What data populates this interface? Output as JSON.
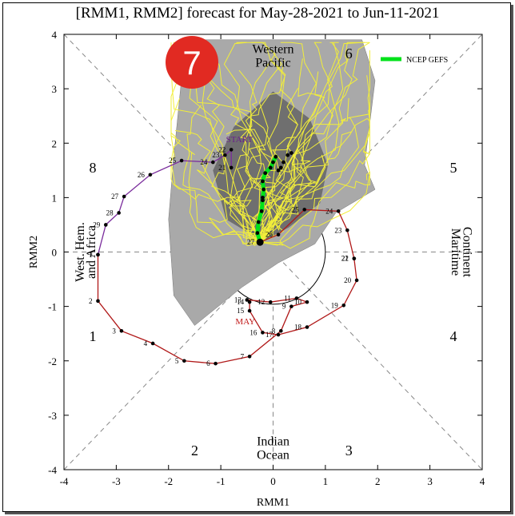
{
  "chart_data": {
    "type": "line",
    "title": "[RMM1, RMM2] forecast for May-28-2021 to Jun-11-2021",
    "xlabel": "RMM1",
    "ylabel": "RMM2",
    "xlim": [
      -4,
      4
    ],
    "ylim": [
      -4,
      4
    ],
    "xticks": [
      "-4",
      "-3",
      "-2",
      "-1",
      "0",
      "1",
      "2",
      "3",
      "4"
    ],
    "yticks": [
      "-4",
      "-3",
      "-2",
      "-1",
      "0",
      "1",
      "2",
      "3",
      "4"
    ],
    "phases": [
      "1",
      "2",
      "3",
      "4",
      "5",
      "6",
      "7",
      "8"
    ],
    "regions": {
      "top": [
        "Western",
        "Pacific"
      ],
      "bottom": [
        "Indian",
        "Ocean"
      ],
      "left": [
        "West. Hem.",
        "and Africa"
      ],
      "right": [
        "Maritime",
        "Continent"
      ]
    },
    "badge": "7",
    "legend": {
      "label": "NCEP GEFS",
      "color": "#00e21a",
      "placement": "top-right"
    },
    "annotations": {
      "start": "START",
      "month": "MAY"
    },
    "observed_red": [
      {
        "d": "1",
        "x": -3.35,
        "y": -0.05
      },
      {
        "d": "2",
        "x": -3.35,
        "y": -0.9
      },
      {
        "d": "3",
        "x": -2.9,
        "y": -1.45
      },
      {
        "d": "4",
        "x": -2.3,
        "y": -1.68
      },
      {
        "d": "5",
        "x": -1.7,
        "y": -2.0
      },
      {
        "d": "6",
        "x": -1.1,
        "y": -2.05
      },
      {
        "d": "7",
        "x": -0.45,
        "y": -1.92
      },
      {
        "d": "8",
        "x": 0.15,
        "y": -1.45
      },
      {
        "d": "9",
        "x": 0.35,
        "y": -1.0
      },
      {
        "d": "10",
        "x": 0.65,
        "y": -0.92
      },
      {
        "d": "11",
        "x": 0.45,
        "y": -0.85
      },
      {
        "d": "12",
        "x": -0.05,
        "y": -0.92
      },
      {
        "d": "13",
        "x": -0.5,
        "y": -0.88
      },
      {
        "d": "14",
        "x": -0.45,
        "y": -0.92
      },
      {
        "d": "15",
        "x": -0.45,
        "y": -1.08
      },
      {
        "d": "16",
        "x": -0.2,
        "y": -1.48
      },
      {
        "d": "17",
        "x": 0.1,
        "y": -1.52
      },
      {
        "d": "18",
        "x": 0.65,
        "y": -1.38
      },
      {
        "d": "19",
        "x": 1.35,
        "y": -0.98
      },
      {
        "d": "20",
        "x": 1.6,
        "y": -0.52
      },
      {
        "d": "21",
        "x": 1.55,
        "y": -0.12
      },
      {
        "d": "22",
        "x": 1.55,
        "y": -0.12
      },
      {
        "d": "23",
        "x": 1.42,
        "y": 0.4
      },
      {
        "d": "24",
        "x": 1.25,
        "y": 0.75
      },
      {
        "d": "25",
        "x": 0.6,
        "y": 0.78
      },
      {
        "d": "26",
        "x": 0.1,
        "y": 0.32
      },
      {
        "d": "27",
        "x": -0.25,
        "y": 0.18
      }
    ],
    "observed_purple": [
      {
        "d": "1",
        "x": -3.35,
        "y": -0.05
      },
      {
        "d": "29",
        "x": -3.2,
        "y": 0.5
      },
      {
        "d": "28",
        "x": -2.95,
        "y": 0.72
      },
      {
        "d": "27",
        "x": -2.85,
        "y": 1.02
      },
      {
        "d": "26",
        "x": -2.35,
        "y": 1.42
      },
      {
        "d": "25",
        "x": -1.75,
        "y": 1.68
      },
      {
        "d": "24",
        "x": -1.15,
        "y": 1.65
      },
      {
        "d": "23",
        "x": -0.92,
        "y": 1.78
      },
      {
        "d": "22",
        "x": -0.8,
        "y": 1.88
      },
      {
        "d": "21",
        "x": -0.8,
        "y": 1.55
      }
    ],
    "ensemble_mean": [
      {
        "x": -0.25,
        "y": 0.18
      },
      {
        "x": -0.3,
        "y": 0.35
      },
      {
        "x": -0.28,
        "y": 0.55
      },
      {
        "x": -0.22,
        "y": 0.75
      },
      {
        "x": -0.2,
        "y": 0.95
      },
      {
        "x": -0.18,
        "y": 1.15
      },
      {
        "x": -0.2,
        "y": 1.3
      },
      {
        "x": -0.15,
        "y": 1.45
      },
      {
        "x": -0.05,
        "y": 1.55
      },
      {
        "x": 0.0,
        "y": 1.65
      },
      {
        "x": 0.05,
        "y": 1.75
      }
    ],
    "ensemble_range_dots": [
      {
        "x": 0.2,
        "y": 1.65
      },
      {
        "x": 0.28,
        "y": 1.78
      },
      {
        "x": 0.35,
        "y": 1.82
      },
      {
        "x": 0.15,
        "y": 1.55
      },
      {
        "x": -0.2,
        "y": 1.0
      },
      {
        "x": 0.1,
        "y": 1.5
      }
    ]
  }
}
